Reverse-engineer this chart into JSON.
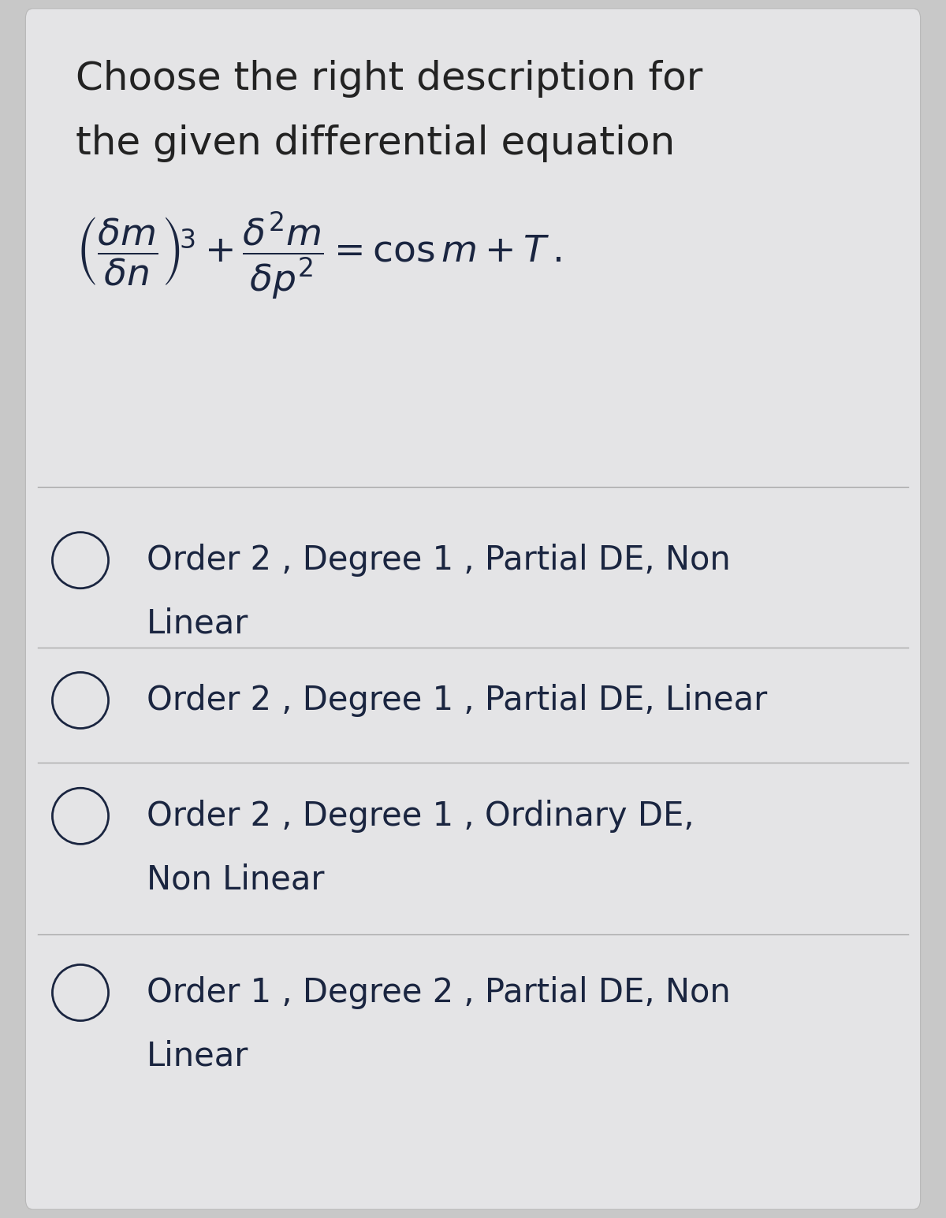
{
  "title_line1": "Choose the right description for",
  "title_line2": "the given differential equation",
  "options": [
    [
      "Order 2 , Degree 1 , Partial DE, Non",
      "Linear"
    ],
    [
      "Order 2 , Degree 1 , Partial DE, Linear"
    ],
    [
      "Order 2 , Degree 1 , Ordinary DE,",
      "Non Linear"
    ],
    [
      "Order 1 , Degree 2 , Partial DE, Non",
      "Linear"
    ]
  ],
  "bg_color": "#c8c8c8",
  "card_color": "#e4e4e6",
  "title_color": "#222222",
  "option_color": "#1a2540",
  "eq_color": "#1a2540",
  "divider_color": "#aaaaaa",
  "circle_color": "#1a2540",
  "title_fontsize": 36,
  "eq_fontsize": 34,
  "option_fontsize": 30
}
